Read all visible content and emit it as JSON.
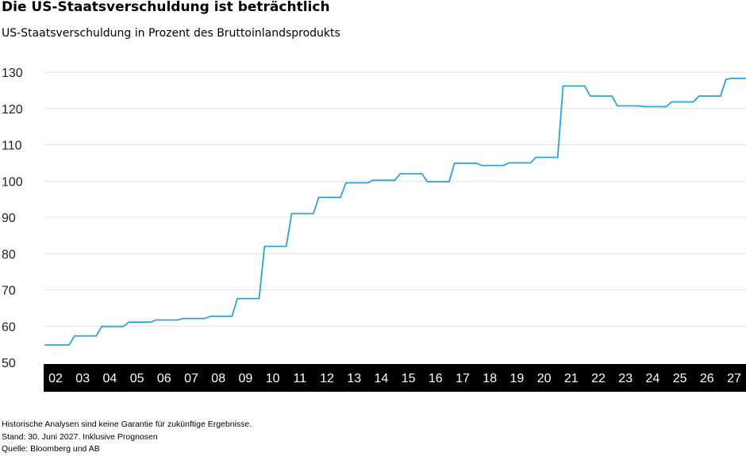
{
  "chart_data": {
    "type": "line",
    "title": "Die US-Staatsverschuldung ist beträchtlich",
    "subtitle": "US-Staatsverschuldung in Prozent des Bruttoinlandsprodukts",
    "xlabel": "",
    "ylabel": "",
    "ylim": [
      50,
      130
    ],
    "yticks": [
      50,
      60,
      70,
      80,
      90,
      100,
      110,
      120,
      130
    ],
    "xticks": [
      "02",
      "03",
      "04",
      "05",
      "06",
      "07",
      "08",
      "09",
      "10",
      "11",
      "12",
      "13",
      "14",
      "15",
      "16",
      "17",
      "18",
      "19",
      "20",
      "21",
      "22",
      "23",
      "24",
      "25",
      "26",
      "27"
    ],
    "xlim": [
      2001.6,
      2027.9
    ],
    "grid": true,
    "line_color": "#2aa2d8",
    "axis_band_color": "#000000",
    "series": [
      {
        "points": [
          [
            2001.6,
            54.8
          ],
          [
            2002.5,
            54.8
          ],
          [
            2002.7,
            57.3
          ],
          [
            2003.5,
            57.3
          ],
          [
            2003.7,
            59.9
          ],
          [
            2004.5,
            59.9
          ],
          [
            2004.7,
            61.1
          ],
          [
            2005.5,
            61.1
          ],
          [
            2005.7,
            61.7
          ],
          [
            2006.5,
            61.7
          ],
          [
            2006.7,
            62.1
          ],
          [
            2007.5,
            62.1
          ],
          [
            2007.7,
            62.7
          ],
          [
            2008.5,
            62.7
          ],
          [
            2008.7,
            67.6
          ],
          [
            2009.5,
            67.6
          ],
          [
            2009.7,
            82.0
          ],
          [
            2010.5,
            82.0
          ],
          [
            2010.7,
            91.0
          ],
          [
            2011.5,
            91.0
          ],
          [
            2011.7,
            95.5
          ],
          [
            2012.5,
            95.5
          ],
          [
            2012.7,
            99.5
          ],
          [
            2013.5,
            99.5
          ],
          [
            2013.7,
            100.2
          ],
          [
            2014.5,
            100.2
          ],
          [
            2014.7,
            102.0
          ],
          [
            2015.5,
            102.0
          ],
          [
            2015.7,
            99.8
          ],
          [
            2016.5,
            99.8
          ],
          [
            2016.7,
            104.9
          ],
          [
            2017.5,
            104.9
          ],
          [
            2017.7,
            104.3
          ],
          [
            2018.5,
            104.3
          ],
          [
            2018.7,
            105.0
          ],
          [
            2019.5,
            105.0
          ],
          [
            2019.7,
            106.5
          ],
          [
            2020.5,
            106.5
          ],
          [
            2020.7,
            126.2
          ],
          [
            2021.5,
            126.2
          ],
          [
            2021.7,
            123.4
          ],
          [
            2022.5,
            123.4
          ],
          [
            2022.7,
            120.7
          ],
          [
            2023.5,
            120.7
          ],
          [
            2023.7,
            120.5
          ],
          [
            2024.5,
            120.5
          ],
          [
            2024.7,
            121.8
          ],
          [
            2025.5,
            121.8
          ],
          [
            2025.7,
            123.4
          ],
          [
            2026.5,
            123.4
          ],
          [
            2026.7,
            128.0
          ],
          [
            2026.9,
            128.3
          ],
          [
            2027.9,
            128.3
          ]
        ]
      }
    ]
  },
  "footnotes": {
    "line1": "Historische Analysen sind keine Garantie für zukünftige Ergebnisse.",
    "line2": "Stand: 30. Juni 2027. Inklusive Prognosen",
    "line3": "Quelle: Bloomberg und AB"
  }
}
